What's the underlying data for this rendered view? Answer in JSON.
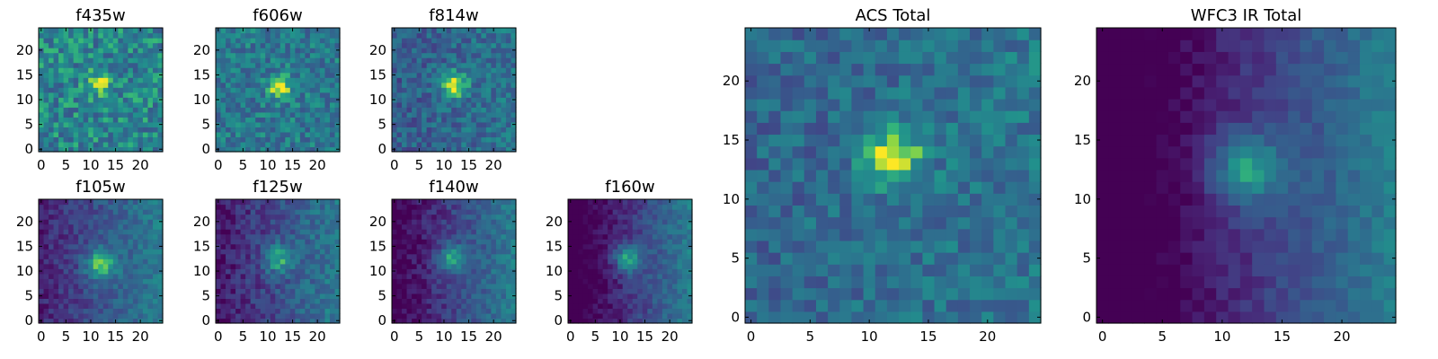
{
  "chart_data": [
    {
      "type": "heatmap",
      "title": "f435w",
      "xticks": [
        0,
        5,
        10,
        15,
        20
      ],
      "yticks": [
        0,
        5,
        10,
        15,
        20
      ],
      "xlim": [
        0,
        24
      ],
      "ylim": [
        0,
        24
      ],
      "grid_size": 25,
      "colormap": "viridis",
      "peak": [
        12,
        13.5
      ],
      "sigma": 1.6,
      "amplitude": 0.35,
      "noise": 0.42,
      "gradient": 0.0,
      "base": 0.55,
      "seed": 11
    },
    {
      "type": "heatmap",
      "title": "f606w",
      "xticks": [
        0,
        5,
        10,
        15,
        20
      ],
      "yticks": [
        0,
        5,
        10,
        15,
        20
      ],
      "xlim": [
        0,
        24
      ],
      "ylim": [
        0,
        24
      ],
      "grid_size": 25,
      "colormap": "viridis",
      "peak": [
        12.5,
        12.5
      ],
      "sigma": 1.6,
      "amplitude": 0.5,
      "noise": 0.35,
      "gradient": 0.0,
      "base": 0.5,
      "seed": 23
    },
    {
      "type": "heatmap",
      "title": "f814w",
      "xticks": [
        0,
        5,
        10,
        15,
        20
      ],
      "yticks": [
        0,
        5,
        10,
        15,
        20
      ],
      "xlim": [
        0,
        24
      ],
      "ylim": [
        0,
        24
      ],
      "grid_size": 25,
      "colormap": "viridis",
      "peak": [
        12,
        13
      ],
      "sigma": 1.8,
      "amplitude": 0.55,
      "noise": 0.33,
      "gradient": 0.12,
      "base": 0.42,
      "seed": 37
    },
    {
      "type": "heatmap",
      "title": "f105w",
      "xticks": [
        0,
        5,
        10,
        15,
        20
      ],
      "yticks": [
        0,
        5,
        10,
        15,
        20
      ],
      "xlim": [
        0,
        24
      ],
      "ylim": [
        0,
        24
      ],
      "grid_size": 25,
      "colormap": "viridis",
      "peak": [
        12,
        11.5
      ],
      "sigma": 2.2,
      "amplitude": 0.5,
      "noise": 0.22,
      "gradient": 0.4,
      "base": 0.32,
      "seed": 41
    },
    {
      "type": "heatmap",
      "title": "f125w",
      "xticks": [
        0,
        5,
        10,
        15,
        20
      ],
      "yticks": [
        0,
        5,
        10,
        15,
        20
      ],
      "xlim": [
        0,
        24
      ],
      "ylim": [
        0,
        24
      ],
      "grid_size": 25,
      "colormap": "viridis",
      "peak": [
        12,
        12.5
      ],
      "sigma": 2.0,
      "amplitude": 0.42,
      "noise": 0.26,
      "gradient": 0.45,
      "base": 0.3,
      "seed": 53
    },
    {
      "type": "heatmap",
      "title": "f140w",
      "xticks": [
        0,
        5,
        10,
        15,
        20
      ],
      "yticks": [
        0,
        5,
        10,
        15,
        20
      ],
      "xlim": [
        0,
        24
      ],
      "ylim": [
        0,
        24
      ],
      "grid_size": 25,
      "colormap": "viridis",
      "peak": [
        11.5,
        12.5
      ],
      "sigma": 2.0,
      "amplitude": 0.45,
      "noise": 0.22,
      "gradient": 0.55,
      "base": 0.25,
      "seed": 61
    },
    {
      "type": "heatmap",
      "title": "f160w",
      "xticks": [
        0,
        5,
        10,
        15,
        20
      ],
      "yticks": [
        0,
        5,
        10,
        15,
        20
      ],
      "xlim": [
        0,
        24
      ],
      "ylim": [
        0,
        24
      ],
      "grid_size": 25,
      "colormap": "viridis",
      "peak": [
        11.5,
        12.5
      ],
      "sigma": 2.0,
      "amplitude": 0.5,
      "noise": 0.2,
      "gradient": 0.65,
      "base": 0.2,
      "seed": 71
    },
    {
      "type": "heatmap",
      "title": "ACS Total",
      "xticks": [
        0,
        5,
        10,
        15,
        20
      ],
      "yticks": [
        0,
        5,
        10,
        15,
        20
      ],
      "xlim": [
        0,
        24
      ],
      "ylim": [
        0,
        24
      ],
      "grid_size": 25,
      "colormap": "viridis",
      "peak": [
        12,
        13.5
      ],
      "sigma": 1.7,
      "amplitude": 0.55,
      "noise": 0.3,
      "gradient": 0.1,
      "base": 0.45,
      "seed": 83
    },
    {
      "type": "heatmap",
      "title": "WFC3 IR Total",
      "xticks": [
        0,
        5,
        10,
        15,
        20
      ],
      "yticks": [
        0,
        5,
        10,
        15,
        20
      ],
      "xlim": [
        0,
        24
      ],
      "ylim": [
        0,
        24
      ],
      "grid_size": 25,
      "colormap": "viridis",
      "peak": [
        12,
        12.5
      ],
      "sigma": 2.1,
      "amplitude": 0.5,
      "noise": 0.14,
      "gradient": 0.7,
      "base": 0.18,
      "seed": 97
    }
  ]
}
